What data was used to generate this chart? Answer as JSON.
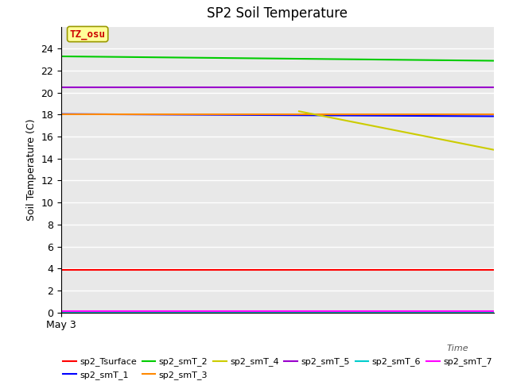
{
  "title": "SP2 Soil Temperature",
  "xlabel": "Time",
  "ylabel": "Soil Temperature (C)",
  "annotation": "TZ_osu",
  "annotation_color": "#cc0000",
  "annotation_bg": "#ffff99",
  "annotation_border": "#999900",
  "ylim": [
    0,
    26
  ],
  "yticks": [
    0,
    2,
    4,
    6,
    8,
    10,
    12,
    14,
    16,
    18,
    20,
    22,
    24
  ],
  "x_label_start": "May 3",
  "bg_color": "#e8e8e8",
  "grid_color": "white",
  "series": [
    {
      "name": "sp2_Tsurface",
      "color": "#ff0000",
      "x": [
        0.0,
        1.0
      ],
      "y": [
        3.9,
        3.9
      ]
    },
    {
      "name": "sp2_smT_1",
      "color": "#0000ff",
      "x": [
        0.0,
        1.0
      ],
      "y": [
        18.05,
        17.85
      ]
    },
    {
      "name": "sp2_smT_2",
      "color": "#00cc00",
      "x": [
        0.0,
        1.0
      ],
      "y": [
        23.3,
        22.9
      ]
    },
    {
      "name": "sp2_smT_3",
      "color": "#ff8800",
      "x": [
        0.0,
        1.0
      ],
      "y": [
        18.05,
        18.05
      ]
    },
    {
      "name": "sp2_smT_4",
      "color": "#cccc00",
      "x": [
        0.55,
        1.0
      ],
      "y": [
        18.3,
        14.8
      ]
    },
    {
      "name": "sp2_smT_5",
      "color": "#9900cc",
      "x": [
        0.0,
        1.0
      ],
      "y": [
        20.5,
        20.5
      ]
    },
    {
      "name": "sp2_smT_6",
      "color": "#00cccc",
      "x": [
        0.0,
        1.0
      ],
      "y": [
        0.05,
        0.05
      ]
    },
    {
      "name": "sp2_smT_7",
      "color": "#ff00ff",
      "x": [
        0.0,
        1.0
      ],
      "y": [
        0.1,
        0.1
      ]
    }
  ]
}
